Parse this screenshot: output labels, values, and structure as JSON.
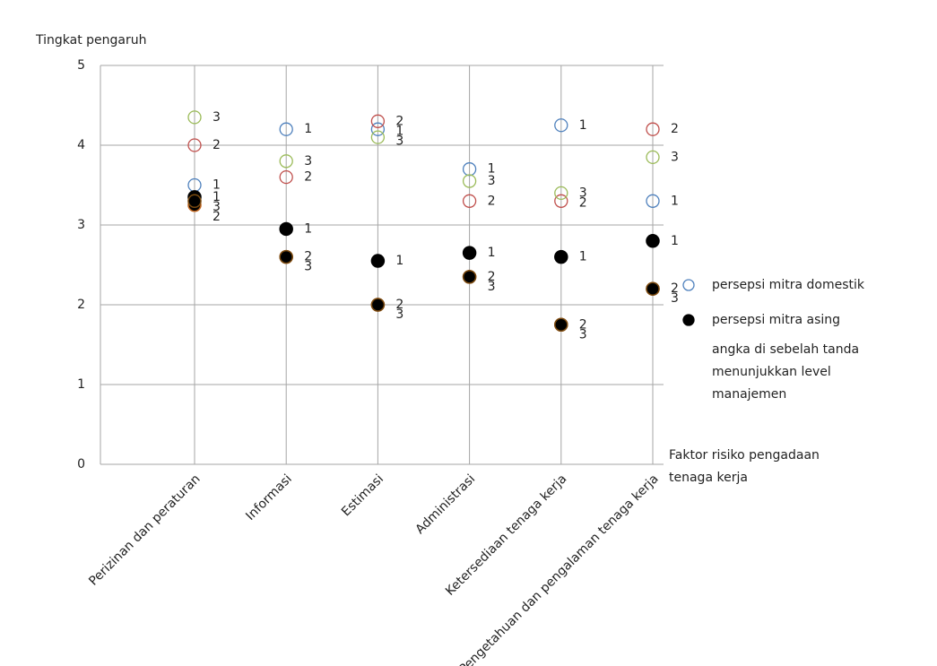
{
  "chart_data": {
    "type": "scatter",
    "y_label": "Tingkat pengaruh",
    "x_label": [
      "Faktor risiko pengadaan",
      "tenaga kerja"
    ],
    "categories": [
      "Perizinan dan peraturan",
      "Informasi",
      "Estimasi",
      "Administrasi",
      "Ketersediaan tenaga kerja",
      "Pengetahuan dan pengalaman tenaga kerja"
    ],
    "ylim": [
      0,
      5
    ],
    "yticks": [
      0,
      1,
      2,
      3,
      4,
      5
    ],
    "grid": true,
    "groups": [
      {
        "name": "persepsi mitra domestik",
        "filled": false,
        "color": "#4f81bd",
        "levels": [
          {
            "label": "1",
            "color": "#4f81bd",
            "values": [
              3.5,
              4.2,
              4.2,
              3.7,
              4.25,
              3.3
            ]
          },
          {
            "label": "2",
            "color": "#c0504d",
            "values": [
              4.0,
              3.6,
              4.3,
              3.3,
              3.3,
              4.2
            ]
          },
          {
            "label": "3",
            "color": "#9bbb59",
            "values": [
              4.35,
              3.8,
              4.1,
              3.55,
              3.4,
              3.85
            ]
          }
        ]
      },
      {
        "name": "persepsi mitra asing",
        "filled": true,
        "color": "#000000",
        "levels": [
          {
            "label": "1",
            "color": "#000000",
            "values": [
              3.35,
              2.95,
              2.55,
              2.65,
              2.6,
              2.8
            ]
          },
          {
            "label": "2",
            "color": "#c0651f",
            "values": [
              3.25,
              2.6,
              2.0,
              2.35,
              1.75,
              2.2
            ]
          },
          {
            "label": "3",
            "color": "#7a4a10",
            "values": [
              3.3,
              2.6,
              2.0,
              2.35,
              1.75,
              2.2
            ]
          }
        ]
      }
    ],
    "note": [
      "angka di sebelah tanda",
      "menunjukkan level",
      "manajemen"
    ]
  }
}
